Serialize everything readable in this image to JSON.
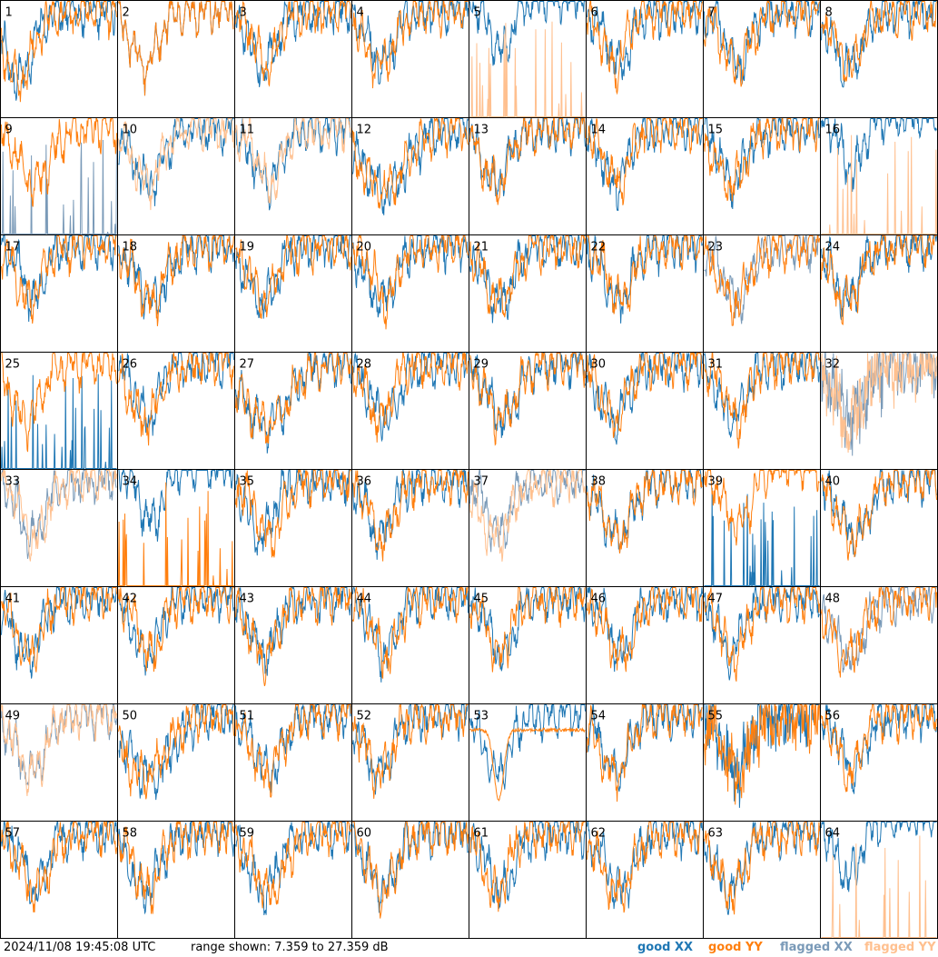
{
  "footer": {
    "timestamp": "2024/11/08 19:45:08 UTC",
    "range_text": "range shown: 7.359 to 27.359 dB"
  },
  "legend": {
    "good_xx": "good XX",
    "good_yy": "good YY",
    "flagged_xx": "flagged XX",
    "flagged_yy": "flagged YY"
  },
  "colors": {
    "good_xx": "#1f77b4",
    "good_yy": "#ff7f0e",
    "flagged_xx": "#7a9ab8",
    "flagged_yy": "#ffc08f",
    "frame": "#000000"
  },
  "chart_data": {
    "type": "line",
    "grid_rows": 8,
    "grid_cols": 8,
    "ylim": [
      7.359,
      27.359
    ],
    "y_unit": "dB",
    "panels": [
      {
        "label": "1",
        "xx": "good",
        "yy": "good",
        "shape": "dip-early"
      },
      {
        "label": "2",
        "xx": "good",
        "yy": "good",
        "shape": "normal"
      },
      {
        "label": "3",
        "xx": "good",
        "yy": "good",
        "shape": "normal"
      },
      {
        "label": "4",
        "xx": "good",
        "yy": "good",
        "shape": "normal"
      },
      {
        "label": "5",
        "xx": "good",
        "yy": "flagged",
        "shape": "xx-high-yy-spikes"
      },
      {
        "label": "6",
        "xx": "good",
        "yy": "good",
        "shape": "normal"
      },
      {
        "label": "7",
        "xx": "good",
        "yy": "good",
        "shape": "normal"
      },
      {
        "label": "8",
        "xx": "good",
        "yy": "good",
        "shape": "normal"
      },
      {
        "label": "9",
        "xx": "flagged",
        "yy": "good",
        "shape": "xx-spikes"
      },
      {
        "label": "10",
        "xx": "good",
        "yy": "flagged",
        "shape": "normal"
      },
      {
        "label": "11",
        "xx": "good",
        "yy": "flagged",
        "shape": "normal"
      },
      {
        "label": "12",
        "xx": "good",
        "yy": "good",
        "shape": "wide-dip"
      },
      {
        "label": "13",
        "xx": "good",
        "yy": "good",
        "shape": "normal"
      },
      {
        "label": "14",
        "xx": "good",
        "yy": "good",
        "shape": "normal"
      },
      {
        "label": "15",
        "xx": "good",
        "yy": "good",
        "shape": "normal"
      },
      {
        "label": "16",
        "xx": "good",
        "yy": "flagged",
        "shape": "xx-high-yy-spikes"
      },
      {
        "label": "17",
        "xx": "good",
        "yy": "good",
        "shape": "normal"
      },
      {
        "label": "18",
        "xx": "good",
        "yy": "good",
        "shape": "normal"
      },
      {
        "label": "19",
        "xx": "good",
        "yy": "good",
        "shape": "normal"
      },
      {
        "label": "20",
        "xx": "good",
        "yy": "good",
        "shape": "normal"
      },
      {
        "label": "21",
        "xx": "good",
        "yy": "good",
        "shape": "normal"
      },
      {
        "label": "22",
        "xx": "good",
        "yy": "good",
        "shape": "normal"
      },
      {
        "label": "23",
        "xx": "flagged",
        "yy": "good",
        "shape": "normal"
      },
      {
        "label": "24",
        "xx": "good",
        "yy": "good",
        "shape": "normal"
      },
      {
        "label": "25",
        "xx": "good",
        "yy": "good",
        "shape": "yy-only"
      },
      {
        "label": "26",
        "xx": "good",
        "yy": "good",
        "shape": "normal"
      },
      {
        "label": "27",
        "xx": "good",
        "yy": "good",
        "shape": "wide-dip"
      },
      {
        "label": "28",
        "xx": "good",
        "yy": "good",
        "shape": "normal"
      },
      {
        "label": "29",
        "xx": "good",
        "yy": "good",
        "shape": "normal"
      },
      {
        "label": "30",
        "xx": "good",
        "yy": "good",
        "shape": "normal"
      },
      {
        "label": "31",
        "xx": "good",
        "yy": "good",
        "shape": "normal"
      },
      {
        "label": "32",
        "xx": "flagged",
        "yy": "flagged",
        "shape": "noisy"
      },
      {
        "label": "33",
        "xx": "flagged",
        "yy": "flagged",
        "shape": "normal"
      },
      {
        "label": "34",
        "xx": "good",
        "yy": "good",
        "shape": "xx-high-yy-spikes"
      },
      {
        "label": "35",
        "xx": "good",
        "yy": "good",
        "shape": "normal"
      },
      {
        "label": "36",
        "xx": "good",
        "yy": "good",
        "shape": "normal"
      },
      {
        "label": "37",
        "xx": "flagged",
        "yy": "flagged",
        "shape": "normal"
      },
      {
        "label": "38",
        "xx": "good",
        "yy": "good",
        "shape": "normal"
      },
      {
        "label": "39",
        "xx": "good",
        "yy": "good",
        "shape": "yy-high-xx-spikes"
      },
      {
        "label": "40",
        "xx": "good",
        "yy": "good",
        "shape": "normal"
      },
      {
        "label": "41",
        "xx": "good",
        "yy": "good",
        "shape": "normal"
      },
      {
        "label": "42",
        "xx": "good",
        "yy": "good",
        "shape": "normal"
      },
      {
        "label": "43",
        "xx": "good",
        "yy": "good",
        "shape": "normal"
      },
      {
        "label": "44",
        "xx": "good",
        "yy": "good",
        "shape": "normal"
      },
      {
        "label": "45",
        "xx": "good",
        "yy": "good",
        "shape": "normal"
      },
      {
        "label": "46",
        "xx": "good",
        "yy": "good",
        "shape": "normal"
      },
      {
        "label": "47",
        "xx": "good",
        "yy": "good",
        "shape": "normal"
      },
      {
        "label": "48",
        "xx": "flagged",
        "yy": "good",
        "shape": "normal"
      },
      {
        "label": "49",
        "xx": "flagged",
        "yy": "flagged",
        "shape": "normal"
      },
      {
        "label": "50",
        "xx": "good",
        "yy": "good",
        "shape": "wide-dip"
      },
      {
        "label": "51",
        "xx": "good",
        "yy": "good",
        "shape": "normal"
      },
      {
        "label": "52",
        "xx": "good",
        "yy": "good",
        "shape": "normal"
      },
      {
        "label": "53",
        "xx": "good",
        "yy": "good",
        "shape": "yy-deep-dip"
      },
      {
        "label": "54",
        "xx": "good",
        "yy": "good",
        "shape": "normal"
      },
      {
        "label": "55",
        "xx": "good",
        "yy": "good",
        "shape": "noisy"
      },
      {
        "label": "56",
        "xx": "good",
        "yy": "good",
        "shape": "normal"
      },
      {
        "label": "57",
        "xx": "good",
        "yy": "good",
        "shape": "normal"
      },
      {
        "label": "58",
        "xx": "good",
        "yy": "good",
        "shape": "normal"
      },
      {
        "label": "59",
        "xx": "good",
        "yy": "good",
        "shape": "normal"
      },
      {
        "label": "60",
        "xx": "good",
        "yy": "good",
        "shape": "normal"
      },
      {
        "label": "61",
        "xx": "good",
        "yy": "good",
        "shape": "normal"
      },
      {
        "label": "62",
        "xx": "good",
        "yy": "good",
        "shape": "normal"
      },
      {
        "label": "63",
        "xx": "good",
        "yy": "good",
        "shape": "normal"
      },
      {
        "label": "64",
        "xx": "good",
        "yy": "flagged",
        "shape": "xx-high-yy-spikes"
      }
    ]
  }
}
